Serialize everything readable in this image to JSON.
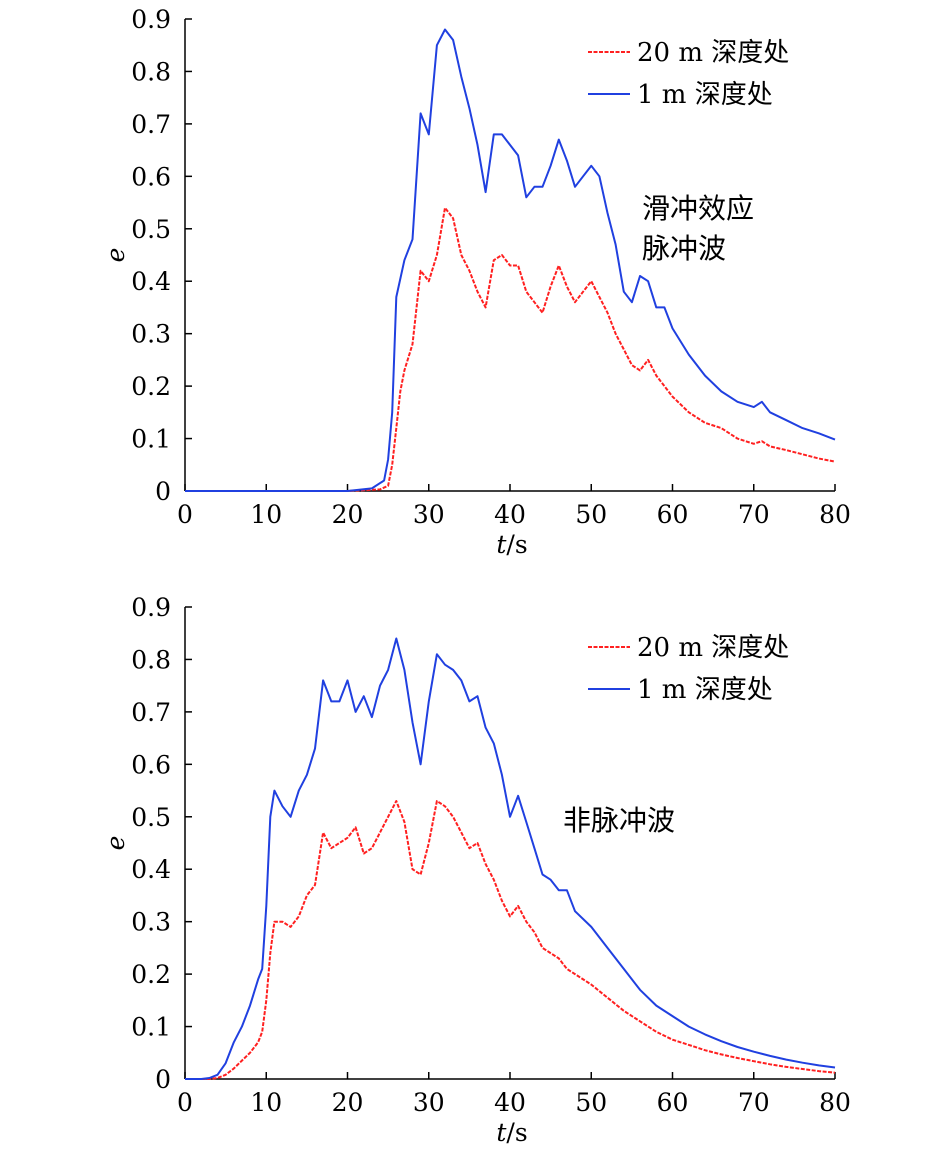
{
  "chart_data": [
    {
      "type": "line",
      "xlabel_italic": "t",
      "xlabel_unit": "/s",
      "ylabel": "e",
      "xlim": [
        0,
        80
      ],
      "ylim": [
        0,
        0.9
      ],
      "xticks": [
        "0",
        "10",
        "20",
        "30",
        "40",
        "50",
        "60",
        "70",
        "80"
      ],
      "yticks": [
        "0",
        "0.1",
        "0.2",
        "0.3",
        "0.4",
        "0.5",
        "0.6",
        "0.7",
        "0.8",
        "0.9"
      ],
      "legend_position": "top-right",
      "annotation": [
        "滑冲效应",
        "脉冲波"
      ],
      "series": [
        {
          "name": "20 m 深度处",
          "color": "#ff2020",
          "dash": "dashed",
          "x": [
            0,
            20,
            24,
            25,
            25.5,
            26,
            26.5,
            27,
            28,
            29,
            30,
            31,
            32,
            33,
            34,
            35,
            36,
            37,
            38,
            39,
            40,
            41,
            42,
            43,
            44,
            45,
            46,
            47,
            48,
            49,
            50,
            51,
            52,
            53,
            54,
            55,
            56,
            57,
            58,
            59,
            60,
            62,
            64,
            66,
            68,
            70,
            71,
            72,
            74,
            76,
            78,
            80
          ],
          "values": [
            0,
            0,
            0.003,
            0.01,
            0.05,
            0.12,
            0.19,
            0.23,
            0.28,
            0.42,
            0.4,
            0.45,
            0.54,
            0.52,
            0.45,
            0.42,
            0.38,
            0.35,
            0.44,
            0.45,
            0.43,
            0.43,
            0.38,
            0.36,
            0.34,
            0.39,
            0.43,
            0.39,
            0.36,
            0.38,
            0.4,
            0.37,
            0.34,
            0.3,
            0.27,
            0.24,
            0.23,
            0.25,
            0.22,
            0.2,
            0.18,
            0.15,
            0.13,
            0.12,
            0.1,
            0.09,
            0.095,
            0.085,
            0.078,
            0.07,
            0.062,
            0.056
          ]
        },
        {
          "name": "1 m 深度处",
          "color": "#2040e0",
          "dash": "solid",
          "x": [
            0,
            20,
            23,
            24.5,
            25,
            25.5,
            26,
            27,
            28,
            29,
            30,
            31,
            32,
            33,
            34,
            35,
            36,
            37,
            38,
            39,
            40,
            41,
            42,
            43,
            44,
            45,
            46,
            47,
            48,
            49,
            50,
            51,
            52,
            53,
            54,
            55,
            56,
            57,
            58,
            59,
            60,
            62,
            64,
            66,
            68,
            70,
            71,
            72,
            74,
            76,
            78,
            80
          ],
          "values": [
            0,
            0,
            0.005,
            0.02,
            0.06,
            0.15,
            0.37,
            0.44,
            0.48,
            0.72,
            0.68,
            0.85,
            0.88,
            0.86,
            0.79,
            0.73,
            0.66,
            0.57,
            0.68,
            0.68,
            0.66,
            0.64,
            0.56,
            0.58,
            0.58,
            0.62,
            0.67,
            0.63,
            0.58,
            0.6,
            0.62,
            0.6,
            0.53,
            0.47,
            0.38,
            0.36,
            0.41,
            0.4,
            0.35,
            0.35,
            0.31,
            0.26,
            0.22,
            0.19,
            0.17,
            0.16,
            0.17,
            0.15,
            0.135,
            0.12,
            0.11,
            0.098
          ]
        }
      ]
    },
    {
      "type": "line",
      "xlabel_italic": "t",
      "xlabel_unit": "/s",
      "ylabel": "e",
      "xlim": [
        0,
        80
      ],
      "ylim": [
        0,
        0.9
      ],
      "xticks": [
        "0",
        "10",
        "20",
        "30",
        "40",
        "50",
        "60",
        "70",
        "80"
      ],
      "yticks": [
        "0",
        "0.1",
        "0.2",
        "0.3",
        "0.4",
        "0.5",
        "0.6",
        "0.7",
        "0.8",
        "0.9"
      ],
      "legend_position": "top-right",
      "annotation": [
        "非脉冲波"
      ],
      "series": [
        {
          "name": "20 m 深度处",
          "color": "#ff2020",
          "dash": "dashed",
          "x": [
            0,
            3,
            4,
            5,
            6,
            7,
            8,
            9,
            9.5,
            10,
            10.5,
            11,
            12,
            13,
            14,
            15,
            16,
            17,
            18,
            19,
            20,
            21,
            22,
            23,
            24,
            25,
            26,
            27,
            28,
            29,
            30,
            31,
            32,
            33,
            34,
            35,
            36,
            37,
            38,
            39,
            40,
            41,
            42,
            43,
            44,
            45,
            46,
            47,
            48,
            50,
            52,
            54,
            56,
            58,
            60,
            62,
            64,
            66,
            68,
            70,
            72,
            74,
            76,
            78,
            80
          ],
          "values": [
            0,
            0,
            0.002,
            0.008,
            0.02,
            0.035,
            0.05,
            0.07,
            0.09,
            0.15,
            0.24,
            0.3,
            0.3,
            0.29,
            0.31,
            0.35,
            0.37,
            0.47,
            0.44,
            0.45,
            0.46,
            0.48,
            0.43,
            0.44,
            0.47,
            0.5,
            0.53,
            0.49,
            0.4,
            0.39,
            0.45,
            0.53,
            0.52,
            0.5,
            0.47,
            0.44,
            0.45,
            0.41,
            0.38,
            0.34,
            0.31,
            0.33,
            0.3,
            0.28,
            0.25,
            0.24,
            0.23,
            0.21,
            0.2,
            0.18,
            0.155,
            0.13,
            0.11,
            0.09,
            0.075,
            0.065,
            0.055,
            0.047,
            0.04,
            0.034,
            0.028,
            0.023,
            0.019,
            0.015,
            0.012
          ]
        },
        {
          "name": "1 m 深度处",
          "color": "#2040e0",
          "dash": "solid",
          "x": [
            0,
            2,
            3,
            4,
            5,
            6,
            7,
            8,
            9,
            9.5,
            10,
            10.5,
            11,
            12,
            13,
            14,
            15,
            16,
            17,
            18,
            19,
            20,
            21,
            22,
            23,
            24,
            25,
            26,
            27,
            28,
            29,
            30,
            31,
            32,
            33,
            34,
            35,
            36,
            37,
            38,
            39,
            40,
            41,
            42,
            43,
            44,
            45,
            46,
            47,
            48,
            50,
            52,
            54,
            56,
            58,
            60,
            62,
            64,
            66,
            68,
            70,
            72,
            74,
            76,
            78,
            80
          ],
          "values": [
            0,
            0,
            0.002,
            0.008,
            0.03,
            0.07,
            0.1,
            0.14,
            0.19,
            0.21,
            0.33,
            0.5,
            0.55,
            0.52,
            0.5,
            0.55,
            0.58,
            0.63,
            0.76,
            0.72,
            0.72,
            0.76,
            0.7,
            0.73,
            0.69,
            0.75,
            0.78,
            0.84,
            0.78,
            0.68,
            0.6,
            0.72,
            0.81,
            0.79,
            0.78,
            0.76,
            0.72,
            0.73,
            0.67,
            0.64,
            0.58,
            0.5,
            0.54,
            0.49,
            0.44,
            0.39,
            0.38,
            0.36,
            0.36,
            0.32,
            0.29,
            0.25,
            0.21,
            0.17,
            0.14,
            0.12,
            0.1,
            0.085,
            0.072,
            0.061,
            0.052,
            0.044,
            0.037,
            0.031,
            0.026,
            0.022
          ]
        }
      ]
    }
  ]
}
